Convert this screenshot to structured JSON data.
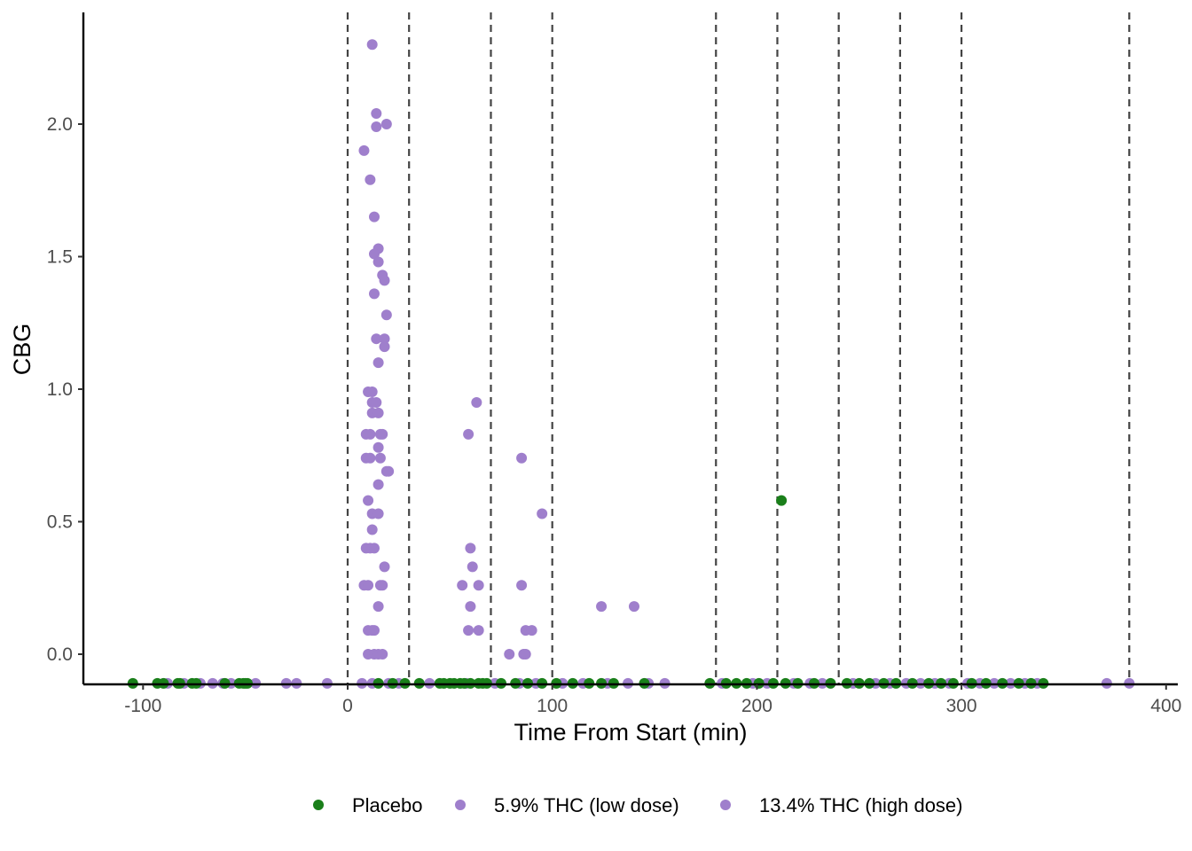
{
  "chart_data": {
    "type": "scatter",
    "title": "",
    "xlabel": "Time From Start (min)",
    "ylabel": "CBG",
    "xlim": [
      -130,
      405
    ],
    "ylim": [
      -0.11,
      2.42
    ],
    "x_ticks": [
      -100,
      0,
      100,
      200,
      300,
      400
    ],
    "x_tick_labels": [
      "-100",
      "0",
      "100",
      "200",
      "300",
      "400"
    ],
    "y_ticks": [
      0.0,
      0.5,
      1.0,
      1.5,
      2.0
    ],
    "y_tick_labels": [
      "0.0",
      "0.5",
      "1.0",
      "1.5",
      "2.0"
    ],
    "grid": false,
    "legend_position": "bottom",
    "vlines": [
      0,
      30,
      70,
      100,
      180,
      210,
      240,
      270,
      300,
      382
    ],
    "vline_style": "dashed",
    "series": [
      {
        "name": "Placebo",
        "color": "#1a7f1a",
        "points": [
          [
            212,
            0.58
          ],
          [
            -105,
            -0.11
          ],
          [
            -93,
            -0.11
          ],
          [
            -90,
            -0.11
          ],
          [
            -83,
            -0.11
          ],
          [
            -82,
            -0.11
          ],
          [
            -76,
            -0.11
          ],
          [
            -74,
            -0.11
          ],
          [
            -60,
            -0.11
          ],
          [
            -53,
            -0.11
          ],
          [
            -51,
            -0.11
          ],
          [
            -50,
            -0.11
          ],
          [
            -49,
            -0.11
          ],
          [
            15,
            -0.11
          ],
          [
            22,
            -0.11
          ],
          [
            28,
            -0.11
          ],
          [
            35,
            -0.11
          ],
          [
            45,
            -0.11
          ],
          [
            47,
            -0.11
          ],
          [
            50,
            -0.11
          ],
          [
            52,
            -0.11
          ],
          [
            55,
            -0.11
          ],
          [
            57,
            -0.11
          ],
          [
            60,
            -0.11
          ],
          [
            64,
            -0.11
          ],
          [
            66,
            -0.11
          ],
          [
            68,
            -0.11
          ],
          [
            75,
            -0.11
          ],
          [
            82,
            -0.11
          ],
          [
            88,
            -0.11
          ],
          [
            95,
            -0.11
          ],
          [
            102,
            -0.11
          ],
          [
            110,
            -0.11
          ],
          [
            118,
            -0.11
          ],
          [
            124,
            -0.11
          ],
          [
            130,
            -0.11
          ],
          [
            145,
            -0.11
          ],
          [
            177,
            -0.11
          ],
          [
            185,
            -0.11
          ],
          [
            190,
            -0.11
          ],
          [
            195,
            -0.11
          ],
          [
            201,
            -0.11
          ],
          [
            208,
            -0.11
          ],
          [
            214,
            -0.11
          ],
          [
            220,
            -0.11
          ],
          [
            228,
            -0.11
          ],
          [
            236,
            -0.11
          ],
          [
            244,
            -0.11
          ],
          [
            250,
            -0.11
          ],
          [
            255,
            -0.11
          ],
          [
            262,
            -0.11
          ],
          [
            268,
            -0.11
          ],
          [
            276,
            -0.11
          ],
          [
            284,
            -0.11
          ],
          [
            290,
            -0.11
          ],
          [
            296,
            -0.11
          ],
          [
            305,
            -0.11
          ],
          [
            312,
            -0.11
          ],
          [
            320,
            -0.11
          ],
          [
            328,
            -0.11
          ],
          [
            334,
            -0.11
          ],
          [
            340,
            -0.11
          ]
        ]
      },
      {
        "name": "5.9% THC (low dose)",
        "color": "#9f7fcc",
        "points": [
          [
            -88,
            -0.11
          ],
          [
            -80,
            -0.11
          ],
          [
            -72,
            -0.11
          ],
          [
            -66,
            -0.11
          ],
          [
            -61,
            -0.11
          ],
          [
            -57,
            -0.11
          ],
          [
            -45,
            -0.11
          ],
          [
            -30,
            -0.11
          ],
          [
            -25,
            -0.11
          ],
          [
            -10,
            -0.11
          ],
          [
            7,
            -0.11
          ],
          [
            12,
            -0.11
          ],
          [
            20,
            -0.11
          ],
          [
            25,
            -0.11
          ],
          [
            40,
            -0.11
          ],
          [
            58,
            -0.11
          ],
          [
            72,
            -0.11
          ],
          [
            84,
            -0.11
          ],
          [
            92,
            -0.11
          ],
          [
            105,
            -0.11
          ],
          [
            115,
            -0.11
          ],
          [
            127,
            -0.11
          ],
          [
            137,
            -0.11
          ],
          [
            147,
            -0.11
          ],
          [
            155,
            -0.11
          ],
          [
            183,
            -0.11
          ],
          [
            198,
            -0.11
          ],
          [
            205,
            -0.11
          ],
          [
            218,
            -0.11
          ],
          [
            226,
            -0.11
          ],
          [
            232,
            -0.11
          ],
          [
            247,
            -0.11
          ],
          [
            258,
            -0.11
          ],
          [
            265,
            -0.11
          ],
          [
            273,
            -0.11
          ],
          [
            280,
            -0.11
          ],
          [
            287,
            -0.11
          ],
          [
            294,
            -0.11
          ],
          [
            303,
            -0.11
          ],
          [
            309,
            -0.11
          ],
          [
            316,
            -0.11
          ],
          [
            324,
            -0.11
          ],
          [
            331,
            -0.11
          ],
          [
            337,
            -0.11
          ]
        ]
      },
      {
        "name": "13.4% THC (high dose)",
        "color": "#9f7fcc",
        "points": [
          [
            12,
            2.3
          ],
          [
            14,
            2.04
          ],
          [
            19,
            2.0
          ],
          [
            14,
            1.99
          ],
          [
            8,
            1.9
          ],
          [
            11,
            1.79
          ],
          [
            13,
            1.65
          ],
          [
            15,
            1.53
          ],
          [
            13,
            1.51
          ],
          [
            15,
            1.48
          ],
          [
            17,
            1.43
          ],
          [
            18,
            1.41
          ],
          [
            13,
            1.36
          ],
          [
            19,
            1.28
          ],
          [
            14,
            1.19
          ],
          [
            18,
            1.19
          ],
          [
            18,
            1.16
          ],
          [
            15,
            1.1
          ],
          [
            10,
            0.99
          ],
          [
            12,
            0.99
          ],
          [
            12,
            0.95
          ],
          [
            14,
            0.95
          ],
          [
            12,
            0.91
          ],
          [
            15,
            0.91
          ],
          [
            9,
            0.83
          ],
          [
            11,
            0.83
          ],
          [
            16,
            0.83
          ],
          [
            17,
            0.83
          ],
          [
            15,
            0.78
          ],
          [
            9,
            0.74
          ],
          [
            11,
            0.74
          ],
          [
            16,
            0.74
          ],
          [
            19,
            0.69
          ],
          [
            20,
            0.69
          ],
          [
            15,
            0.64
          ],
          [
            10,
            0.58
          ],
          [
            12,
            0.53
          ],
          [
            15,
            0.53
          ],
          [
            12,
            0.47
          ],
          [
            9,
            0.4
          ],
          [
            11,
            0.4
          ],
          [
            13,
            0.4
          ],
          [
            18,
            0.33
          ],
          [
            8,
            0.26
          ],
          [
            10,
            0.26
          ],
          [
            16,
            0.26
          ],
          [
            17,
            0.26
          ],
          [
            15,
            0.18
          ],
          [
            10,
            0.09
          ],
          [
            12,
            0.09
          ],
          [
            13,
            0.09
          ],
          [
            10,
            0.0
          ],
          [
            13,
            0.0
          ],
          [
            15,
            0.0
          ],
          [
            17,
            0.0
          ],
          [
            63,
            0.95
          ],
          [
            59,
            0.83
          ],
          [
            85,
            0.74
          ],
          [
            95,
            0.53
          ],
          [
            60,
            0.4
          ],
          [
            61,
            0.33
          ],
          [
            56,
            0.26
          ],
          [
            64,
            0.26
          ],
          [
            85,
            0.26
          ],
          [
            60,
            0.18
          ],
          [
            124,
            0.18
          ],
          [
            140,
            0.18
          ],
          [
            59,
            0.09
          ],
          [
            64,
            0.09
          ],
          [
            87,
            0.09
          ],
          [
            90,
            0.09
          ],
          [
            79,
            0.0
          ],
          [
            86,
            0.0
          ],
          [
            87,
            0.0
          ],
          [
            371,
            -0.11
          ],
          [
            382,
            -0.11
          ]
        ]
      }
    ]
  }
}
